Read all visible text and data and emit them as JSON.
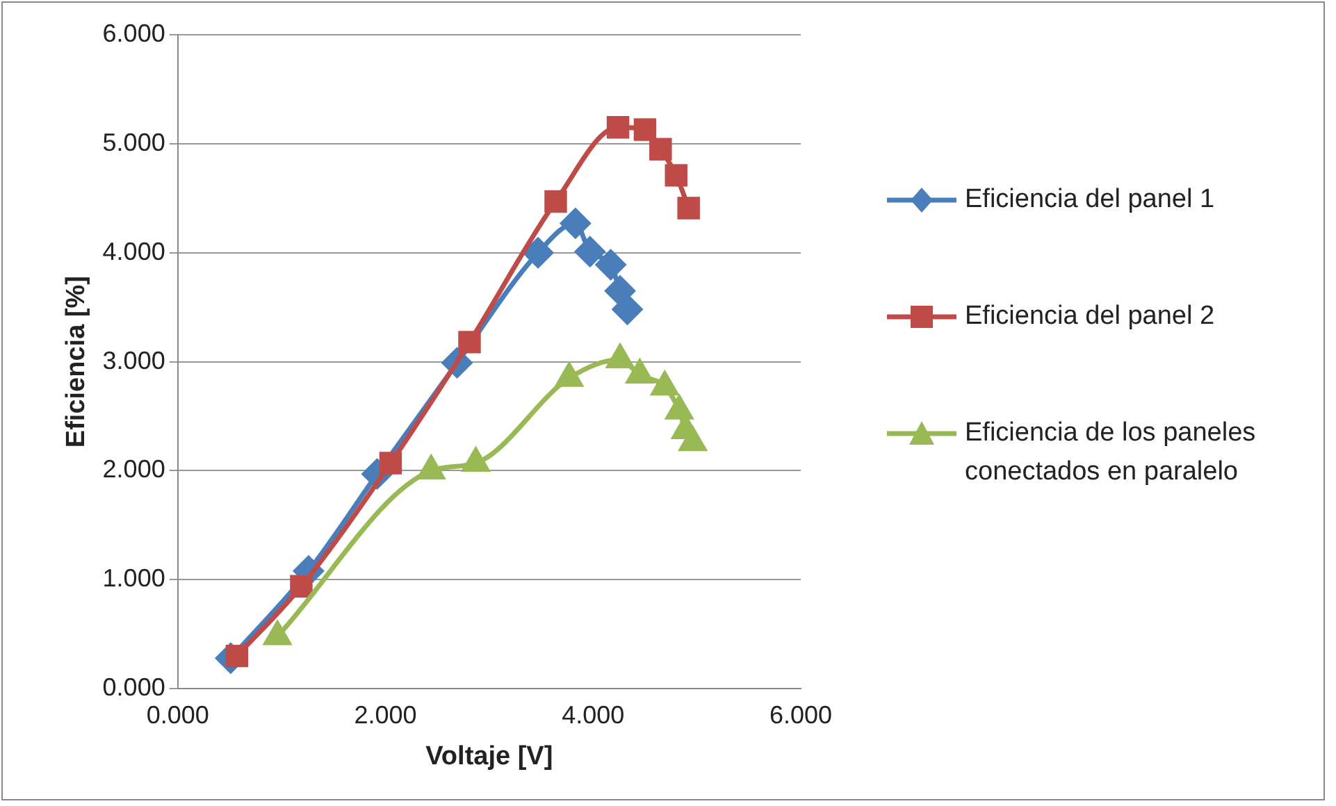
{
  "chart_data": {
    "type": "line",
    "xlabel": "Voltaje [V]",
    "ylabel": "Eficiencia [%]",
    "xlim": [
      0,
      6
    ],
    "xticks": [
      {
        "value": 0,
        "label": "0.000"
      },
      {
        "value": 2,
        "label": "2.000"
      },
      {
        "value": 4,
        "label": "4.000"
      },
      {
        "value": 6,
        "label": "6.000"
      }
    ],
    "ylim": [
      0,
      6
    ],
    "yticks": [
      {
        "value": 0,
        "label": "0.000"
      },
      {
        "value": 1,
        "label": "1.000"
      },
      {
        "value": 2,
        "label": "2.000"
      },
      {
        "value": 3,
        "label": "3.000"
      },
      {
        "value": 4,
        "label": "4.000"
      },
      {
        "value": 5,
        "label": "5.000"
      },
      {
        "value": 6,
        "label": "6.000"
      }
    ],
    "grid": "y",
    "legend": "right",
    "series": [
      {
        "name": "Eficiencia del panel 1",
        "color": "#4a7ebb",
        "marker": "diamond",
        "x": [
          0.51,
          1.26,
          1.92,
          2.69,
          3.47,
          3.83,
          3.97,
          4.17,
          4.26,
          4.33
        ],
        "values": [
          0.28,
          1.08,
          1.97,
          2.99,
          4.0,
          4.27,
          4.01,
          3.89,
          3.65,
          3.48
        ]
      },
      {
        "name": "Eficiencia del panel 2",
        "color": "#be4b48",
        "marker": "square",
        "x": [
          0.57,
          1.19,
          2.05,
          2.81,
          3.64,
          4.24,
          4.5,
          4.65,
          4.8,
          4.92
        ],
        "values": [
          0.3,
          0.94,
          2.07,
          3.18,
          4.47,
          5.15,
          5.13,
          4.95,
          4.71,
          4.41
        ]
      },
      {
        "name": "Eficiencia de los paneles conectados en paralelo",
        "color": "#98b954",
        "marker": "triangle",
        "x": [
          0.96,
          2.44,
          2.87,
          3.77,
          4.26,
          4.45,
          4.69,
          4.83,
          4.89,
          4.96
        ],
        "values": [
          0.48,
          2.0,
          2.07,
          2.85,
          3.02,
          2.88,
          2.77,
          2.55,
          2.37,
          2.26
        ]
      }
    ]
  }
}
